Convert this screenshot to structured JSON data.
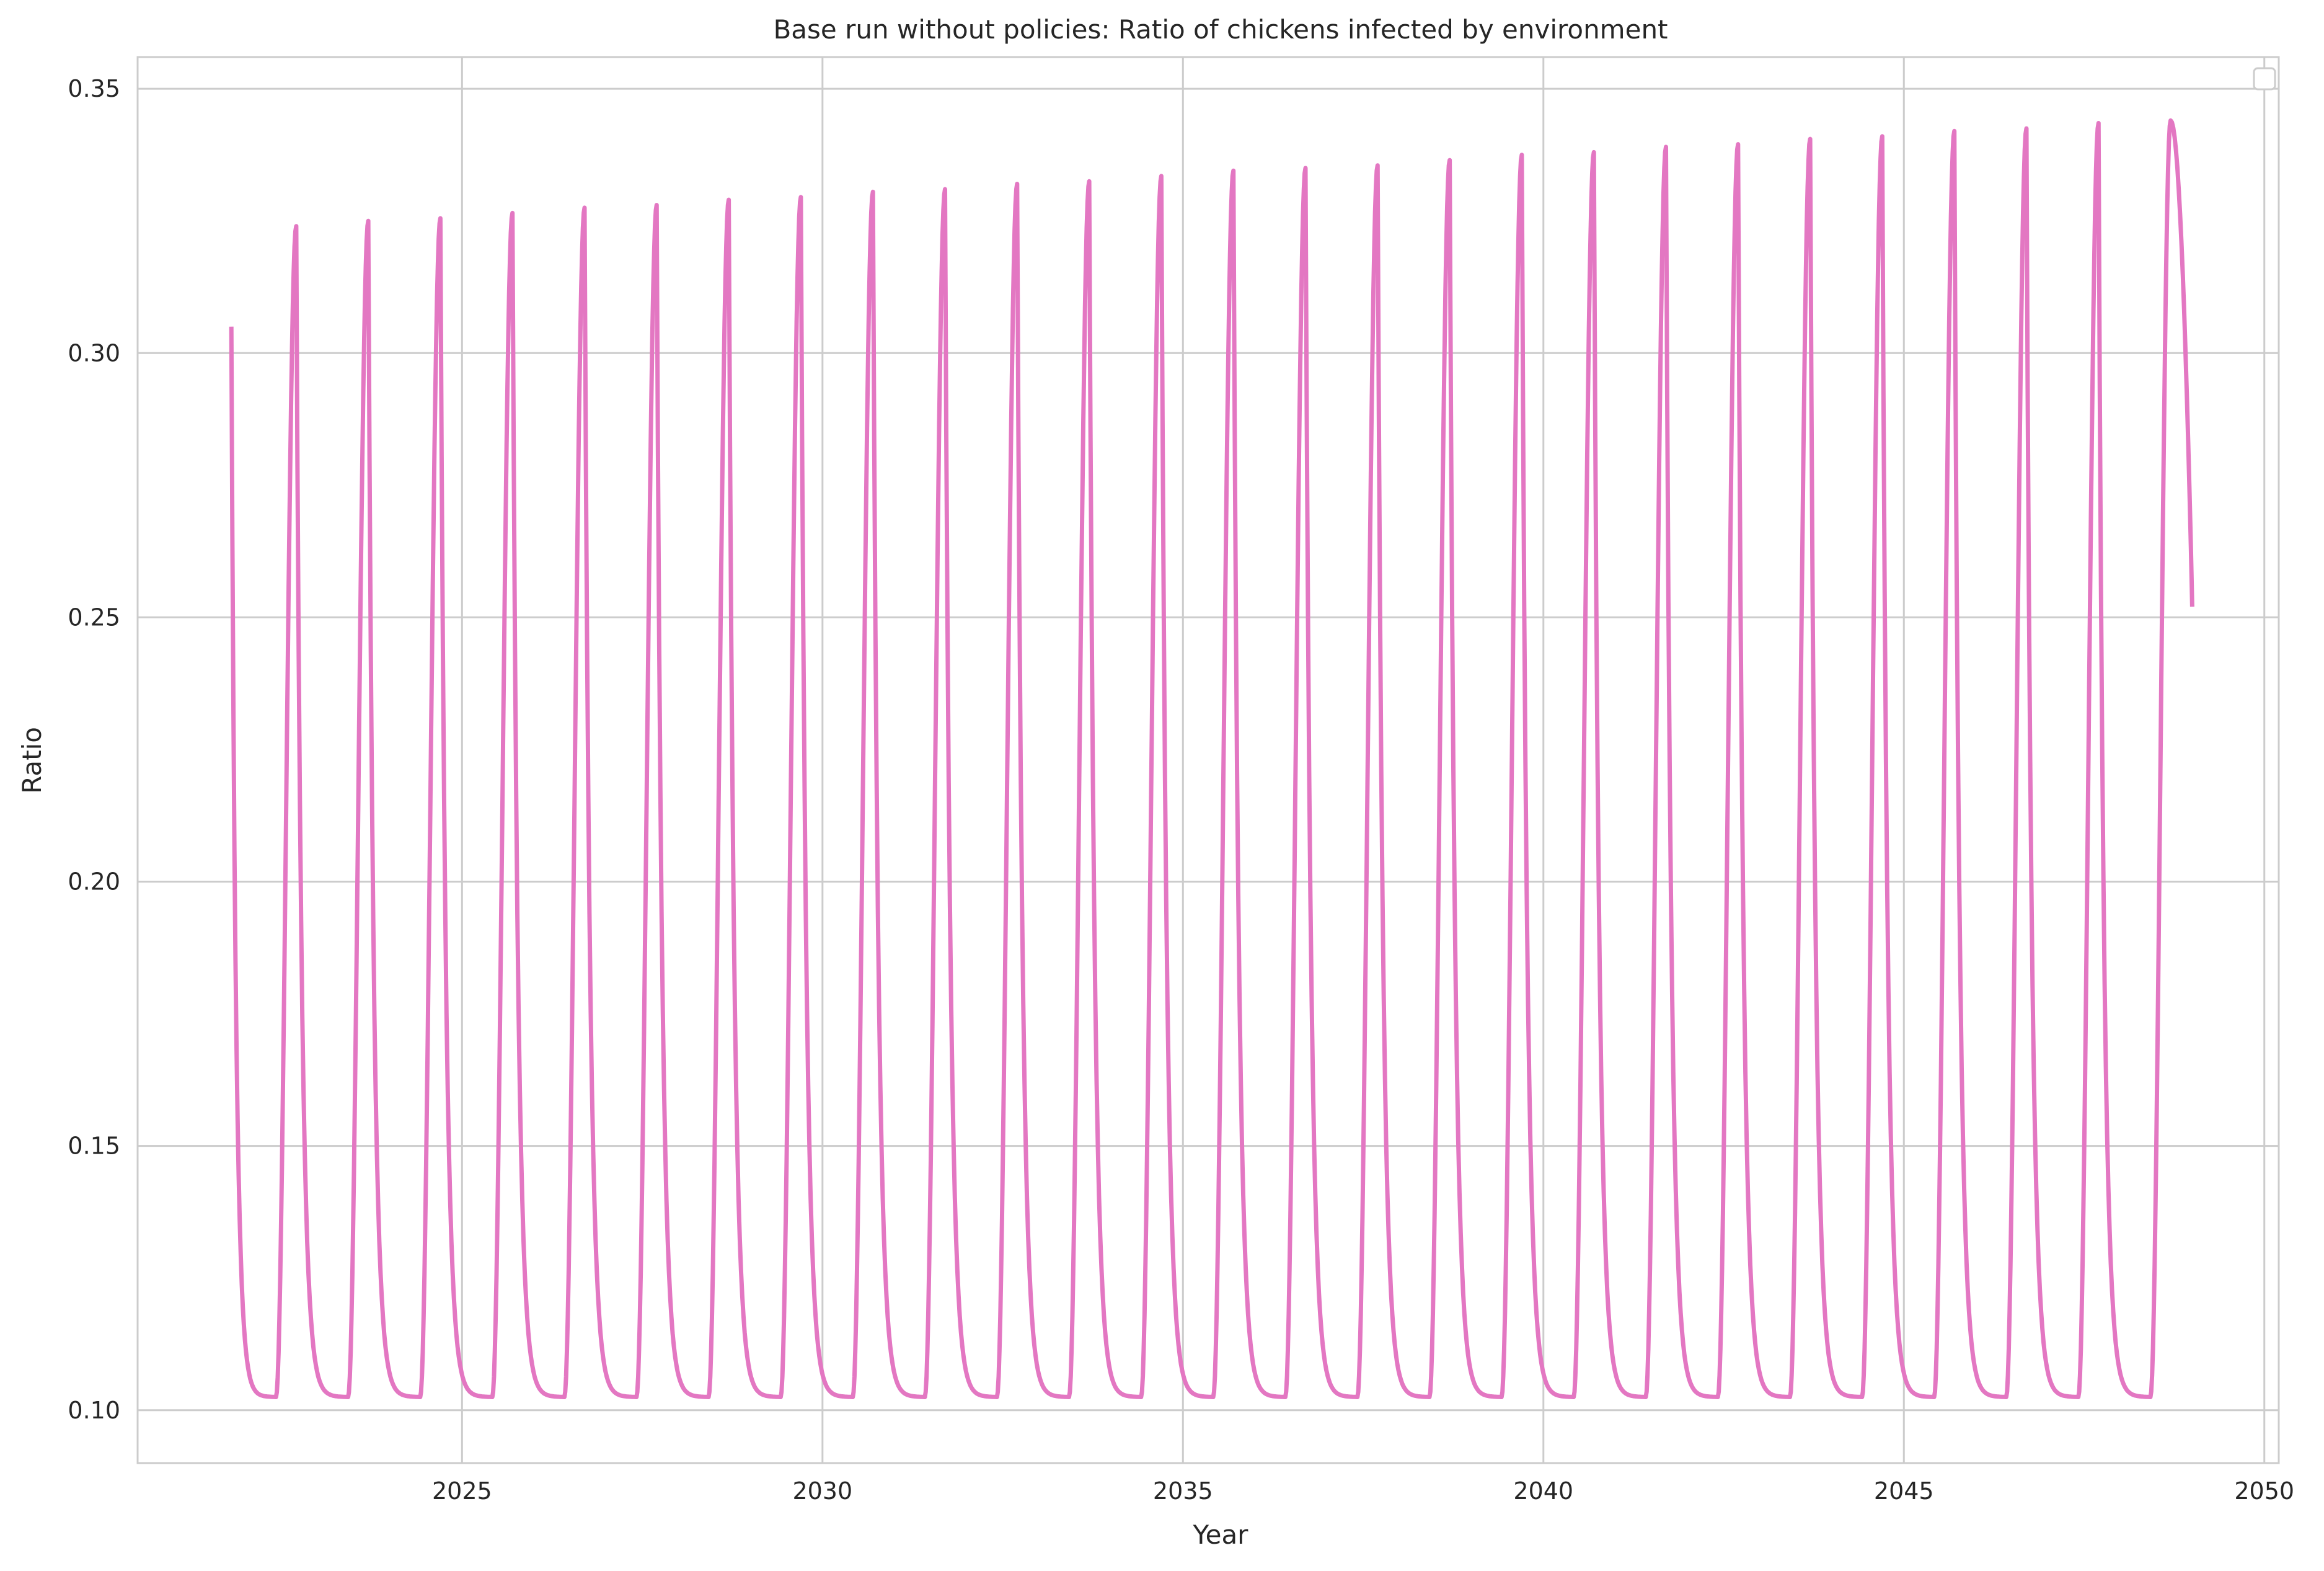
{
  "chart_data": {
    "type": "line",
    "title": "Base run without policies: Ratio of chickens infected by environment",
    "xlabel": "Year",
    "ylabel": "Ratio",
    "xlim": [
      2020.5,
      2050.2
    ],
    "ylim": [
      0.09,
      0.356
    ],
    "xticks": [
      2025,
      2030,
      2035,
      2040,
      2045,
      2050
    ],
    "xtick_labels": [
      "2025",
      "2030",
      "2035",
      "2040",
      "2045",
      "2050"
    ],
    "yticks": [
      0.1,
      0.15,
      0.2,
      0.25,
      0.3,
      0.35
    ],
    "ytick_labels": [
      "0.10",
      "0.15",
      "0.20",
      "0.25",
      "0.30",
      "0.35"
    ],
    "grid": true,
    "legend": "top-right (empty)",
    "series": [
      {
        "color": "#e377c2",
        "x_start": 2021.8,
        "x_end": 2049.0,
        "start_value": 0.305,
        "end_value": 0.252,
        "trough_value": 0.1025,
        "peaks": [
          {
            "x": 2022.7,
            "y": 0.324
          },
          {
            "x": 2023.7,
            "y": 0.325
          },
          {
            "x": 2024.7,
            "y": 0.3255
          },
          {
            "x": 2025.7,
            "y": 0.3265
          },
          {
            "x": 2026.7,
            "y": 0.3275
          },
          {
            "x": 2027.7,
            "y": 0.328
          },
          {
            "x": 2028.7,
            "y": 0.329
          },
          {
            "x": 2029.7,
            "y": 0.3295
          },
          {
            "x": 2030.7,
            "y": 0.3305
          },
          {
            "x": 2031.7,
            "y": 0.331
          },
          {
            "x": 2032.7,
            "y": 0.332
          },
          {
            "x": 2033.7,
            "y": 0.3325
          },
          {
            "x": 2034.7,
            "y": 0.3335
          },
          {
            "x": 2035.7,
            "y": 0.3345
          },
          {
            "x": 2036.7,
            "y": 0.335
          },
          {
            "x": 2037.7,
            "y": 0.3355
          },
          {
            "x": 2038.7,
            "y": 0.3365
          },
          {
            "x": 2039.7,
            "y": 0.3375
          },
          {
            "x": 2040.7,
            "y": 0.338
          },
          {
            "x": 2041.7,
            "y": 0.339
          },
          {
            "x": 2042.7,
            "y": 0.3395
          },
          {
            "x": 2043.7,
            "y": 0.3405
          },
          {
            "x": 2044.7,
            "y": 0.341
          },
          {
            "x": 2045.7,
            "y": 0.342
          },
          {
            "x": 2046.7,
            "y": 0.3425
          },
          {
            "x": 2047.7,
            "y": 0.3435
          },
          {
            "x": 2048.7,
            "y": 0.344
          }
        ]
      }
    ]
  }
}
